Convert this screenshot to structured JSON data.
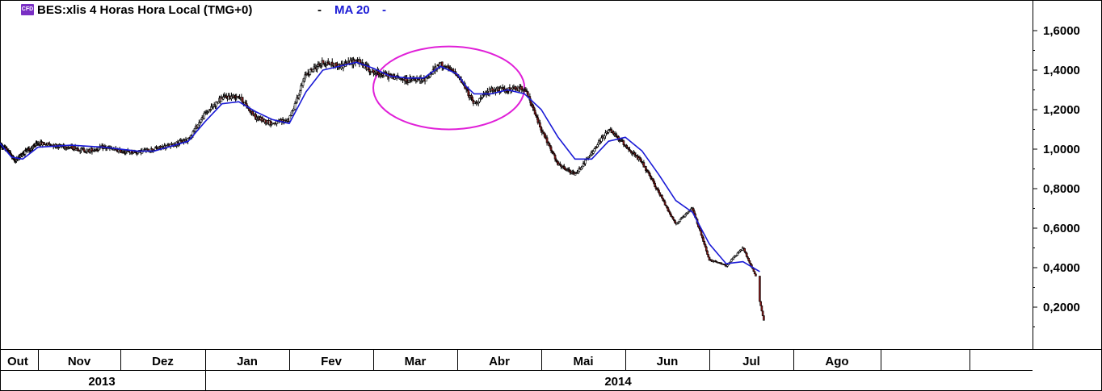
{
  "header": {
    "icon_label": "CFD",
    "title": "BES:xlis 4 Horas Hora Local (TMG+0)",
    "separator": "-",
    "indicator": "MA 20",
    "indicator_suffix": "-"
  },
  "colors": {
    "candle_up": "#ffffff",
    "candle_down": "#8b1a1a",
    "wick": "#000000",
    "ma_line": "#1a1ad6",
    "highlight_ellipse": "#e020d8",
    "grid": "#000000"
  },
  "chart_data": {
    "type": "candlestick",
    "y_axis_labels": [
      "1,6000",
      "1,4000",
      "1,2000",
      "1,0000",
      "0,8000",
      "0,6000",
      "0,4000",
      "0,2000"
    ],
    "y_ticks": [
      1.6,
      1.4,
      1.2,
      1.0,
      0.8,
      0.6,
      0.4,
      0.2
    ],
    "ylim": [
      0.0,
      1.72
    ],
    "months": [
      "Out",
      "Nov",
      "Dez",
      "Jan",
      "Fev",
      "Mar",
      "Abr",
      "Mai",
      "Jun",
      "Jul",
      "Ago"
    ],
    "years": [
      "2013",
      "2014"
    ],
    "close_path": [
      [
        0.0,
        1.02
      ],
      [
        0.2,
        0.995
      ],
      [
        0.4,
        0.94
      ],
      [
        0.6,
        0.98
      ],
      [
        0.8,
        1.0
      ],
      [
        1.0,
        1.03
      ],
      [
        1.2,
        1.02
      ],
      [
        1.4,
        1.01
      ],
      [
        1.6,
        0.99
      ],
      [
        1.8,
        1.01
      ],
      [
        2.0,
        0.99
      ],
      [
        2.2,
        0.985
      ],
      [
        2.4,
        1.0
      ],
      [
        2.6,
        1.02
      ],
      [
        2.8,
        1.05
      ],
      [
        3.0,
        1.18
      ],
      [
        3.2,
        1.26
      ],
      [
        3.4,
        1.27
      ],
      [
        3.6,
        1.16
      ],
      [
        3.8,
        1.13
      ],
      [
        4.0,
        1.15
      ],
      [
        4.2,
        1.38
      ],
      [
        4.4,
        1.44
      ],
      [
        4.6,
        1.42
      ],
      [
        4.8,
        1.45
      ],
      [
        5.0,
        1.39
      ],
      [
        5.2,
        1.37
      ],
      [
        5.4,
        1.35
      ],
      [
        5.6,
        1.35
      ],
      [
        5.8,
        1.43
      ],
      [
        6.0,
        1.38
      ],
      [
        6.2,
        1.23
      ],
      [
        6.4,
        1.3
      ],
      [
        6.6,
        1.3
      ],
      [
        6.8,
        1.31
      ],
      [
        7.0,
        1.1
      ],
      [
        7.2,
        0.92
      ],
      [
        7.4,
        0.87
      ],
      [
        7.6,
        0.98
      ],
      [
        7.8,
        1.1
      ],
      [
        8.0,
        1.02
      ],
      [
        8.2,
        0.93
      ],
      [
        8.4,
        0.78
      ],
      [
        8.6,
        0.62
      ],
      [
        8.8,
        0.7
      ],
      [
        9.0,
        0.44
      ],
      [
        9.2,
        0.41
      ],
      [
        9.4,
        0.5
      ],
      [
        9.55,
        0.36
      ],
      [
        9.6,
        0.23
      ],
      [
        9.65,
        0.13
      ]
    ],
    "ma_path": [
      [
        0.0,
        1.03
      ],
      [
        0.3,
        0.96
      ],
      [
        0.6,
        0.95
      ],
      [
        1.0,
        1.01
      ],
      [
        1.4,
        1.02
      ],
      [
        1.8,
        1.01
      ],
      [
        2.2,
        0.99
      ],
      [
        2.4,
        0.99
      ],
      [
        2.8,
        1.04
      ],
      [
        3.0,
        1.14
      ],
      [
        3.2,
        1.23
      ],
      [
        3.4,
        1.24
      ],
      [
        3.6,
        1.19
      ],
      [
        3.8,
        1.15
      ],
      [
        4.0,
        1.13
      ],
      [
        4.2,
        1.29
      ],
      [
        4.4,
        1.4
      ],
      [
        4.6,
        1.42
      ],
      [
        4.8,
        1.44
      ],
      [
        5.0,
        1.41
      ],
      [
        5.2,
        1.37
      ],
      [
        5.4,
        1.36
      ],
      [
        5.6,
        1.36
      ],
      [
        5.8,
        1.42
      ],
      [
        6.0,
        1.38
      ],
      [
        6.1,
        1.32
      ],
      [
        6.2,
        1.28
      ],
      [
        6.4,
        1.28
      ],
      [
        6.6,
        1.3
      ],
      [
        6.8,
        1.28
      ],
      [
        7.0,
        1.2
      ],
      [
        7.2,
        1.06
      ],
      [
        7.4,
        0.95
      ],
      [
        7.6,
        0.95
      ],
      [
        7.8,
        1.04
      ],
      [
        8.0,
        1.06
      ],
      [
        8.2,
        0.99
      ],
      [
        8.4,
        0.87
      ],
      [
        8.6,
        0.74
      ],
      [
        8.8,
        0.68
      ],
      [
        9.0,
        0.52
      ],
      [
        9.2,
        0.42
      ],
      [
        9.4,
        0.43
      ],
      [
        9.6,
        0.38
      ]
    ],
    "annotation_ellipse": {
      "x_center": 5.9,
      "y_center": 1.31,
      "x_radius": 0.9,
      "y_radius": 0.21
    }
  }
}
